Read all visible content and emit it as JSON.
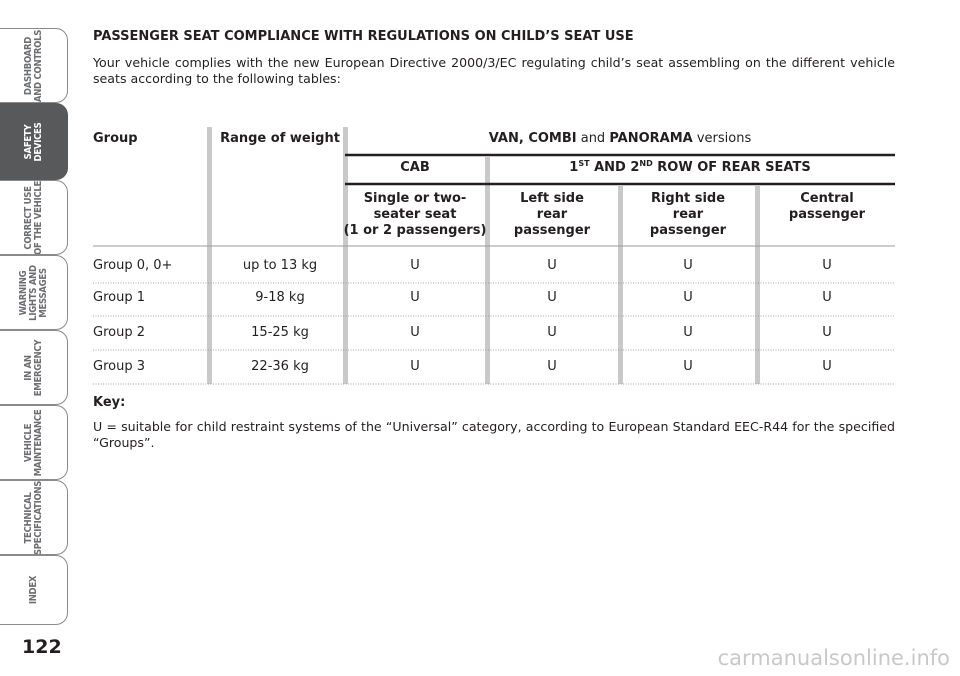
{
  "sidebar": {
    "tabs": [
      [
        "DASHBOARD",
        "AND CONTROLS"
      ],
      [
        "SAFETY",
        "DEVICES"
      ],
      [
        "CORRECT USE",
        "OF THE VEHICLE"
      ],
      [
        "WARNING",
        "LIGHTS AND",
        "MESSAGES"
      ],
      [
        "IN AN",
        "EMERGENCY"
      ],
      [
        "VEHICLE",
        "MAINTENANCE"
      ],
      [
        "TECHNICAL",
        "SPECIFICATIONS"
      ],
      [
        "INDEX"
      ]
    ],
    "active": 1
  },
  "page_number": "122",
  "heading": "PASSENGER SEAT COMPLIANCE WITH REGULATIONS ON CHILD’S SEAT USE",
  "intro": "Your vehicle complies with the new European Directive 2000/3/EC regulating child’s seat assembling on the different vehicle seats according to the following tables:",
  "table": {
    "group_header": "Group",
    "weight_header": "Range of weight",
    "versions_header": [
      {
        "text": "VAN, COMBI",
        "bold": true
      },
      {
        "text": " and ",
        "bold": false
      },
      {
        "text": "PANORAMA",
        "bold": true
      },
      {
        "text": " versions",
        "bold": false
      }
    ],
    "cab_header": "CAB",
    "rear_header": [
      {
        "text": "1",
        "sup": false
      },
      {
        "text": "ST",
        "sup": true
      },
      {
        "text": " AND 2",
        "sup": false
      },
      {
        "text": "ND",
        "sup": true
      },
      {
        "text": " ROW OF REAR SEATS",
        "sup": false
      }
    ],
    "seat_headers": [
      [
        "Single or two-",
        "seater seat",
        "(1 or 2 passengers)"
      ],
      [
        "Left side",
        "rear",
        "passenger"
      ],
      [
        "Right side",
        "rear",
        "passenger"
      ],
      [
        "Central",
        "passenger"
      ]
    ],
    "rows": [
      [
        "Group 0, 0+",
        "up to 13 kg",
        "U",
        "U",
        "U",
        "U"
      ],
      [
        "Group 1",
        "9-18 kg",
        "U",
        "U",
        "U",
        "U"
      ],
      [
        "Group 2",
        "15-25 kg",
        "U",
        "U",
        "U",
        "U"
      ],
      [
        "Group 3",
        "22-36 kg",
        "U",
        "U",
        "U",
        "U"
      ]
    ]
  },
  "key": {
    "title": "Key:",
    "text": "U = suitable for child restraint systems of the “Universal” category, according to European Standard EEC-R44 for the specified “Groups”."
  },
  "watermark": "carmanualsonline.info"
}
